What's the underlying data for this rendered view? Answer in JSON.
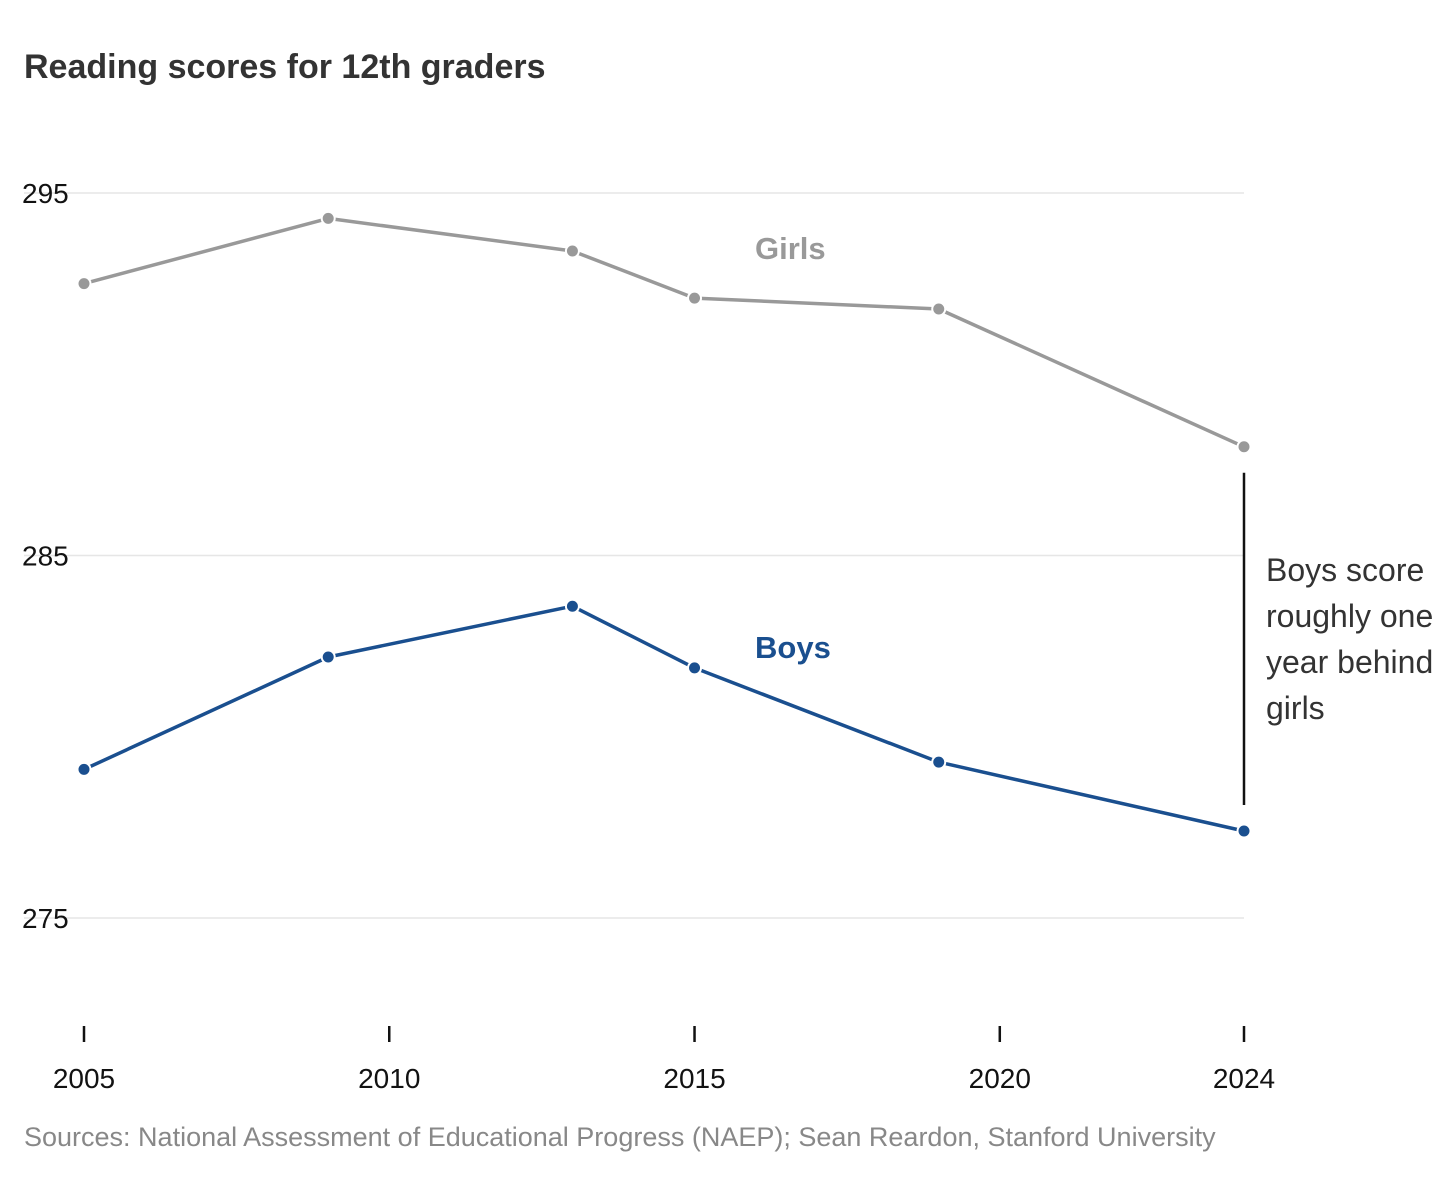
{
  "chart_data": {
    "type": "line",
    "title": "Reading scores for 12th graders",
    "xlabel": "",
    "ylabel": "",
    "x": [
      2005,
      2009,
      2013,
      2015,
      2019,
      2024
    ],
    "x_ticks": [
      2005,
      2010,
      2015,
      2020,
      2024
    ],
    "x_tick_labels": [
      "2005",
      "2010",
      "2015",
      "2020",
      "2024"
    ],
    "xlim": [
      2005,
      2024
    ],
    "y_ticks": [
      275,
      285,
      295
    ],
    "y_tick_labels": [
      "275",
      "285",
      "295"
    ],
    "ylim": [
      271,
      296.5
    ],
    "grid": true,
    "series": [
      {
        "name": "Girls",
        "color": "#999999",
        "values": [
          292.5,
          294.3,
          293.4,
          292.1,
          291.8,
          288.0
        ]
      },
      {
        "name": "Boys",
        "color": "#1a4f8f",
        "values": [
          279.1,
          282.2,
          283.6,
          281.9,
          279.3,
          277.4
        ]
      }
    ],
    "annotation": {
      "lines": [
        "Boys score",
        "roughly one",
        "year behind",
        "girls"
      ],
      "color": "#121212"
    },
    "source": "Sources: National Assessment of Educational Progress (NAEP); Sean Reardon, Stanford University"
  }
}
